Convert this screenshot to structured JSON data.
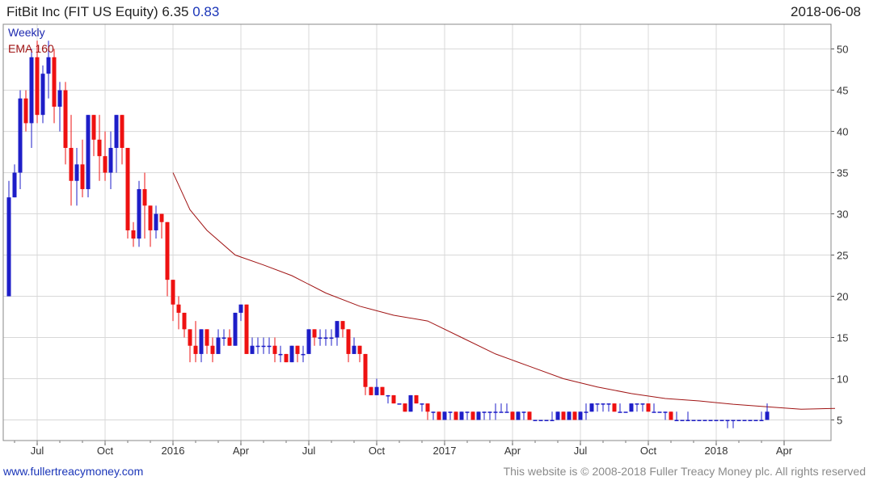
{
  "header": {
    "ticker_title": "FitBit Inc (FIT US Equity)",
    "price": "6.35",
    "change": "0.83",
    "date": "2018-06-08"
  },
  "legend": {
    "period": "Weekly",
    "ema_label": "EMA 160"
  },
  "footer": {
    "website": "www.fullertreacymoney.com",
    "rights": "This website is © 2008-2018 Fuller Treacy Money plc. All rights reserved"
  },
  "colors": {
    "up": "#1e1ec8",
    "down": "#ee1111",
    "ema": "#a01414",
    "grid": "#d8d8d8",
    "price_change": "#1a35b8"
  },
  "chart_data": {
    "type": "candlestick",
    "frequency": "weekly",
    "ylim": [
      2.5,
      53
    ],
    "y_ticks": [
      5,
      10,
      15,
      20,
      25,
      30,
      35,
      40,
      45,
      50
    ],
    "x_tick_labels": [
      "Jul",
      "Oct",
      "2016",
      "Apr",
      "Jul",
      "Oct",
      "2017",
      "Apr",
      "Jul",
      "Oct",
      "2018",
      "Apr"
    ],
    "x_tick_weeks": [
      5,
      17,
      29,
      41,
      53,
      65,
      77,
      89,
      101,
      113,
      125,
      137
    ],
    "candles": [
      [
        20,
        32,
        34,
        20
      ],
      [
        32,
        35,
        36,
        32
      ],
      [
        35,
        44,
        45,
        33
      ],
      [
        44,
        41,
        45,
        40
      ],
      [
        41,
        49,
        50,
        38
      ],
      [
        49,
        42,
        51,
        41
      ],
      [
        42,
        47,
        48,
        41
      ],
      [
        47,
        49,
        51,
        44
      ],
      [
        49,
        43,
        50,
        41
      ],
      [
        43,
        45,
        46,
        40
      ],
      [
        45,
        38,
        46,
        36
      ],
      [
        38,
        34,
        42,
        31
      ],
      [
        34,
        36,
        38,
        31
      ],
      [
        36,
        33,
        39,
        32
      ],
      [
        33,
        42,
        42,
        32
      ],
      [
        42,
        39,
        42,
        37
      ],
      [
        39,
        37,
        42,
        34
      ],
      [
        37,
        35,
        40,
        34
      ],
      [
        35,
        38,
        40,
        33
      ],
      [
        38,
        42,
        42,
        35
      ],
      [
        42,
        38,
        42,
        36
      ],
      [
        38,
        28,
        38,
        27
      ],
      [
        28,
        27,
        29,
        26
      ],
      [
        27,
        33,
        34,
        26
      ],
      [
        33,
        31,
        35,
        27
      ],
      [
        31,
        28,
        31,
        26
      ],
      [
        28,
        30,
        31,
        27
      ],
      [
        30,
        29,
        30,
        27
      ],
      [
        29,
        22,
        29,
        20
      ],
      [
        22,
        19,
        22,
        17
      ],
      [
        19,
        18,
        20,
        16
      ],
      [
        18,
        16,
        18,
        15
      ],
      [
        16,
        14,
        16,
        12
      ],
      [
        14,
        13,
        17,
        12
      ],
      [
        13,
        16,
        16,
        12
      ],
      [
        16,
        14,
        16,
        13
      ],
      [
        14,
        13,
        15,
        12
      ],
      [
        13,
        15,
        16,
        13
      ],
      [
        15,
        15,
        16,
        14
      ],
      [
        15,
        14,
        16,
        14
      ],
      [
        14,
        18,
        18,
        14
      ],
      [
        18,
        19,
        19,
        17
      ],
      [
        19,
        13,
        19,
        13
      ],
      [
        13,
        14,
        15,
        13
      ],
      [
        14,
        14,
        15,
        13
      ],
      [
        14,
        14,
        15,
        13
      ],
      [
        14,
        14,
        15,
        13
      ],
      [
        14,
        13,
        15,
        12
      ],
      [
        13,
        13,
        14,
        12
      ],
      [
        13,
        12,
        13,
        12
      ],
      [
        12,
        14,
        14,
        12
      ],
      [
        14,
        13,
        14,
        12
      ],
      [
        13,
        13,
        14,
        12
      ],
      [
        13,
        16,
        16,
        13
      ],
      [
        16,
        15,
        16,
        14
      ],
      [
        15,
        15,
        16,
        14
      ],
      [
        15,
        15,
        16,
        14
      ],
      [
        15,
        15,
        16,
        14
      ],
      [
        15,
        17,
        17,
        14
      ],
      [
        17,
        16,
        17,
        15
      ],
      [
        16,
        13,
        16,
        12
      ],
      [
        13,
        14,
        15,
        13
      ],
      [
        14,
        13,
        14,
        12
      ],
      [
        13,
        9,
        13,
        8
      ],
      [
        9,
        8,
        9,
        8
      ],
      [
        8,
        9,
        10,
        8
      ],
      [
        9,
        8,
        9,
        8
      ],
      [
        8,
        8,
        8,
        7
      ],
      [
        8,
        7,
        8,
        7
      ],
      [
        7,
        7,
        7,
        7
      ],
      [
        7,
        6,
        7,
        6
      ],
      [
        6,
        8,
        8,
        6
      ],
      [
        8,
        7,
        8,
        7
      ],
      [
        7,
        7,
        7,
        6
      ],
      [
        7,
        6,
        7,
        5
      ],
      [
        6,
        6,
        6,
        5
      ],
      [
        6,
        5,
        6,
        5
      ],
      [
        5,
        6,
        6,
        5
      ],
      [
        6,
        6,
        6,
        5
      ],
      [
        6,
        5,
        6,
        5
      ],
      [
        5,
        6,
        6,
        5
      ],
      [
        6,
        6,
        6,
        5
      ],
      [
        6,
        5,
        6,
        5
      ],
      [
        5,
        6,
        6,
        5
      ],
      [
        6,
        6,
        6,
        5
      ],
      [
        6,
        6,
        6,
        5
      ],
      [
        6,
        6,
        7,
        5
      ],
      [
        6,
        6,
        7,
        6
      ],
      [
        6,
        6,
        7,
        6
      ],
      [
        6,
        5,
        6,
        5
      ],
      [
        5,
        6,
        6,
        5
      ],
      [
        6,
        6,
        6,
        5
      ],
      [
        6,
        5,
        6,
        5
      ],
      [
        5,
        5,
        5,
        5
      ],
      [
        5,
        5,
        5,
        5
      ],
      [
        5,
        5,
        5,
        5
      ],
      [
        5,
        5,
        6,
        5
      ],
      [
        5,
        6,
        6,
        5
      ],
      [
        6,
        5,
        6,
        5
      ],
      [
        5,
        6,
        6,
        5
      ],
      [
        6,
        5,
        6,
        5
      ],
      [
        5,
        6,
        6,
        5
      ],
      [
        6,
        6,
        7,
        5
      ],
      [
        6,
        7,
        7,
        6
      ],
      [
        7,
        7,
        7,
        6
      ],
      [
        7,
        7,
        7,
        6
      ],
      [
        7,
        7,
        7,
        6
      ],
      [
        7,
        6,
        7,
        6
      ],
      [
        6,
        6,
        7,
        6
      ],
      [
        6,
        6,
        6,
        6
      ],
      [
        6,
        7,
        7,
        6
      ],
      [
        7,
        7,
        7,
        6
      ],
      [
        7,
        7,
        7,
        6
      ],
      [
        7,
        6,
        7,
        6
      ],
      [
        6,
        6,
        7,
        6
      ],
      [
        6,
        6,
        6,
        6
      ],
      [
        6,
        6,
        6,
        5
      ],
      [
        6,
        5,
        6,
        5
      ],
      [
        5,
        5,
        6,
        5
      ],
      [
        5,
        5,
        5,
        5
      ],
      [
        5,
        5,
        6,
        5
      ],
      [
        5,
        5,
        5,
        5
      ],
      [
        5,
        5,
        5,
        5
      ],
      [
        5,
        5,
        5,
        5
      ],
      [
        5,
        5,
        5,
        5
      ],
      [
        5,
        5,
        5,
        5
      ],
      [
        5,
        5,
        5,
        5
      ],
      [
        5,
        5,
        5,
        4
      ],
      [
        5,
        5,
        5,
        4
      ],
      [
        5,
        5,
        5,
        5
      ],
      [
        5,
        5,
        5,
        5
      ],
      [
        5,
        5,
        5,
        5
      ],
      [
        5,
        5,
        5,
        5
      ],
      [
        5,
        5,
        6,
        5
      ],
      [
        5,
        6,
        7,
        5
      ]
    ],
    "ema_160": [
      [
        29,
        35
      ],
      [
        32,
        30.5
      ],
      [
        35,
        28
      ],
      [
        40,
        25
      ],
      [
        45,
        23.8
      ],
      [
        50,
        22.5
      ],
      [
        56,
        20.4
      ],
      [
        62,
        18.8
      ],
      [
        68,
        17.7
      ],
      [
        74,
        17
      ],
      [
        80,
        15
      ],
      [
        86,
        13
      ],
      [
        92,
        11.5
      ],
      [
        98,
        10
      ],
      [
        104,
        9
      ],
      [
        110,
        8.2
      ],
      [
        116,
        7.6
      ],
      [
        122,
        7.3
      ],
      [
        128,
        6.9
      ],
      [
        134,
        6.6
      ],
      [
        140,
        6.3
      ],
      [
        146,
        6.4
      ]
    ]
  }
}
